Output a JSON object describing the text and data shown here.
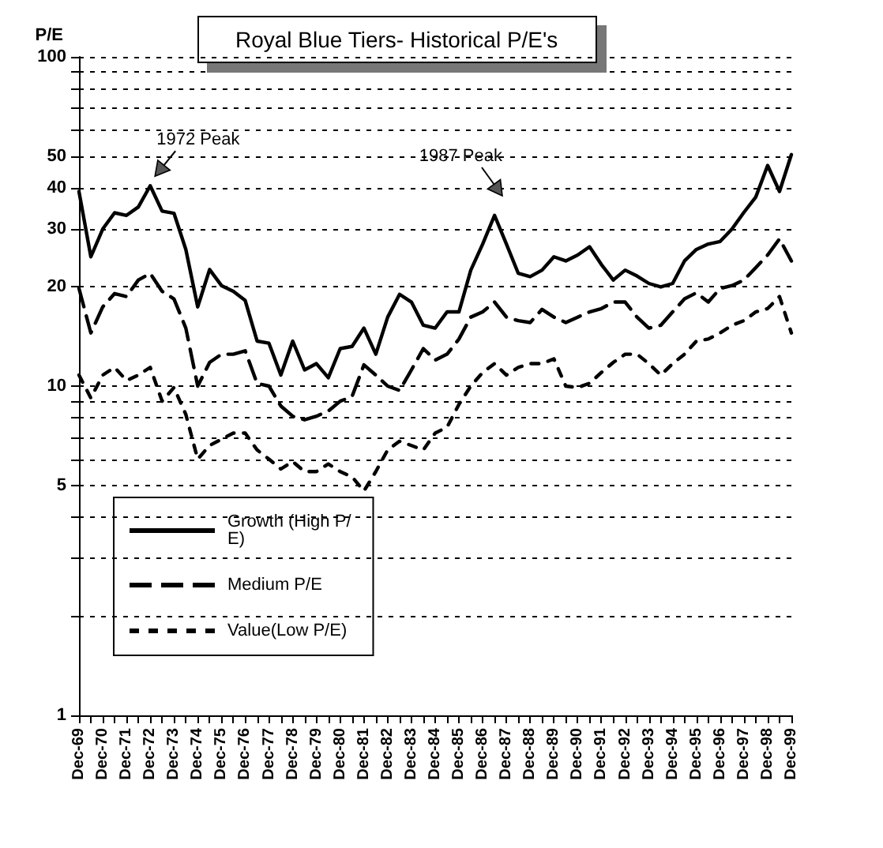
{
  "chart_data": {
    "type": "line",
    "title": "Royal Blue Tiers- Historical P/E's",
    "ylabel": "P/E",
    "categories": [
      "Dec-69",
      null,
      "Dec-70",
      null,
      "Dec-71",
      null,
      "Dec-72",
      null,
      "Dec-73",
      null,
      "Dec-74",
      null,
      "Dec-75",
      null,
      "Dec-76",
      null,
      "Dec-77",
      null,
      "Dec-78",
      null,
      "Dec-79",
      null,
      "Dec-80",
      null,
      "Dec-81",
      null,
      "Dec-82",
      null,
      "Dec-83",
      null,
      "Dec-84",
      null,
      "Dec-85",
      null,
      "Dec-86",
      null,
      "Dec-87",
      null,
      "Dec-88",
      null,
      "Dec-89",
      null,
      "Dec-90",
      null,
      "Dec-91",
      null,
      "Dec-92",
      null,
      "Dec-93",
      null,
      "Dec-94",
      null,
      "Dec-95",
      null,
      "Dec-96",
      null,
      "Dec-97",
      null,
      "Dec-98",
      null,
      "Dec-99"
    ],
    "series": [
      {
        "name": "Growth (High P/E)",
        "color": "#000000",
        "line_style": "solid",
        "values": [
          39,
          24.7,
          30,
          33.6,
          33,
          35,
          40.6,
          34,
          33.5,
          26,
          17.4,
          22.6,
          20.2,
          19.4,
          18.2,
          13.7,
          13.5,
          10.8,
          13.7,
          11.2,
          11.7,
          10.6,
          13,
          13.2,
          15,
          12.5,
          16.2,
          19,
          18,
          15.3,
          15,
          16.8,
          16.8,
          22.5,
          27,
          33,
          27,
          22,
          21.5,
          22.5,
          24.7,
          24,
          25,
          26.5,
          23.4,
          21,
          22.5,
          21.6,
          20.5,
          20,
          20.5,
          24,
          26,
          27,
          27.5,
          30,
          33.7,
          37.5,
          46.8,
          39,
          50.5
        ]
      },
      {
        "name": "Medium P/E",
        "color": "#000000",
        "line_style": "dashed",
        "values": [
          19.8,
          14.5,
          17.4,
          19.1,
          18.7,
          21,
          22,
          19.4,
          18.4,
          15,
          10,
          11.8,
          12.5,
          12.5,
          12.8,
          10.2,
          10,
          8.7,
          8.1,
          7.9,
          8.1,
          8.4,
          9,
          9.3,
          11.6,
          10.8,
          10,
          9.7,
          11.2,
          13,
          12,
          12.5,
          13.9,
          16.2,
          16.8,
          18,
          16.2,
          15.8,
          15.6,
          17.1,
          16.2,
          15.6,
          16.2,
          16.8,
          17.2,
          18,
          18,
          16.2,
          15,
          15.3,
          16.8,
          18.4,
          19.2,
          18,
          19.8,
          20.2,
          21,
          22.9,
          25,
          28,
          24
        ]
      },
      {
        "name": "Value(Low P/E)",
        "color": "#000000",
        "line_style": "dotted",
        "values": [
          10.8,
          9.2,
          10.8,
          11.4,
          10.4,
          10.8,
          11.4,
          9,
          9.9,
          8.2,
          6,
          6.6,
          6.9,
          7.2,
          7.2,
          6.4,
          6,
          5.6,
          5.9,
          5.5,
          5.5,
          5.8,
          5.5,
          5.3,
          4.8,
          5.5,
          6.4,
          6.8,
          6.6,
          6.4,
          7.2,
          7.5,
          8.8,
          10,
          11,
          11.7,
          10.8,
          11.4,
          11.7,
          11.7,
          12.1,
          10,
          9.9,
          10.2,
          11,
          11.8,
          12.5,
          12.5,
          11.7,
          10.8,
          11.7,
          12.5,
          13.7,
          13.9,
          14.5,
          15.3,
          15.8,
          16.8,
          17.2,
          18.7,
          14.5
        ]
      }
    ],
    "annotations": [
      {
        "text": "1972 Peak",
        "x": "Dec-72",
        "y": 40.6
      },
      "1987 Peak"
    ],
    "log": "y",
    "ylim": [
      1,
      100
    ],
    "yticks": [
      1,
      {
        "value": 2,
        "label": null
      },
      {
        "value": 3,
        "label": null
      },
      {
        "value": 4,
        "label": null
      },
      5,
      {
        "value": 6,
        "label": null
      },
      {
        "value": 7,
        "label": null
      },
      {
        "value": 8,
        "label": null
      },
      {
        "value": 9,
        "label": null
      },
      10,
      20,
      30,
      40,
      50,
      {
        "value": 60,
        "label": null
      },
      {
        "value": 70,
        "label": null
      },
      {
        "value": 80,
        "label": null
      },
      {
        "value": 90,
        "label": null
      },
      100
    ],
    "grid": "y",
    "legend": "bottom left",
    "marker": "none"
  }
}
